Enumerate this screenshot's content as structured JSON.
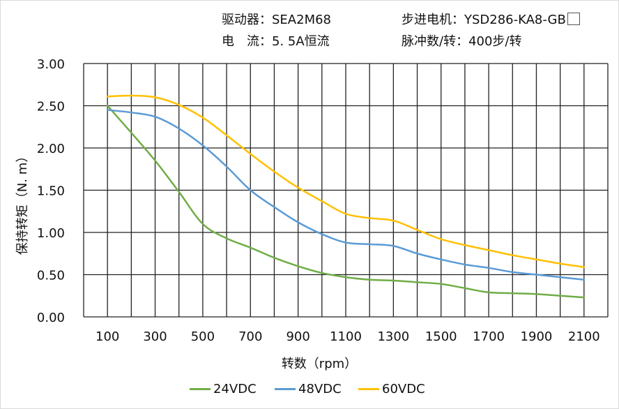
{
  "header": {
    "driver": "驱动器：SEA2M68",
    "motor": "步进电机：YSD286-KA8-GB",
    "current": "电　流：5. 5A恒流",
    "steps": "脉冲数/转：400步/转"
  },
  "chart_data": {
    "type": "line",
    "xlabel": "转数（rpm）",
    "ylabel": "保持转矩（N. m）",
    "xlim": [
      0,
      2200
    ],
    "ylim": [
      0,
      3
    ],
    "grid": true,
    "legend_position": "bottom",
    "x_tick_labels": [
      "100",
      "300",
      "500",
      "700",
      "900",
      "1100",
      "1300",
      "1500",
      "1700",
      "1900",
      "2100"
    ],
    "y_tick_labels": [
      "0.00",
      "0.50",
      "1.00",
      "1.50",
      "2.00",
      "2.50",
      "3.00"
    ],
    "x": [
      100,
      200,
      300,
      400,
      500,
      600,
      700,
      800,
      900,
      1000,
      1100,
      1200,
      1300,
      1400,
      1500,
      1600,
      1700,
      1800,
      1900,
      2000,
      2100
    ],
    "series": [
      {
        "name": "24VDC",
        "color": "#70ad47",
        "values": [
          2.5,
          2.18,
          1.85,
          1.48,
          1.1,
          0.93,
          0.82,
          0.7,
          0.6,
          0.52,
          0.47,
          0.44,
          0.43,
          0.41,
          0.39,
          0.34,
          0.29,
          0.28,
          0.27,
          0.25,
          0.23
        ]
      },
      {
        "name": "48VDC",
        "color": "#5b9bd5",
        "values": [
          2.45,
          2.42,
          2.37,
          2.23,
          2.03,
          1.78,
          1.5,
          1.3,
          1.12,
          0.98,
          0.88,
          0.86,
          0.84,
          0.75,
          0.68,
          0.62,
          0.58,
          0.53,
          0.5,
          0.47,
          0.44
        ]
      },
      {
        "name": "60VDC",
        "color": "#ffc000",
        "values": [
          2.61,
          2.62,
          2.6,
          2.51,
          2.36,
          2.15,
          1.93,
          1.72,
          1.53,
          1.37,
          1.22,
          1.17,
          1.14,
          1.03,
          0.92,
          0.85,
          0.79,
          0.73,
          0.68,
          0.63,
          0.59
        ]
      }
    ]
  }
}
